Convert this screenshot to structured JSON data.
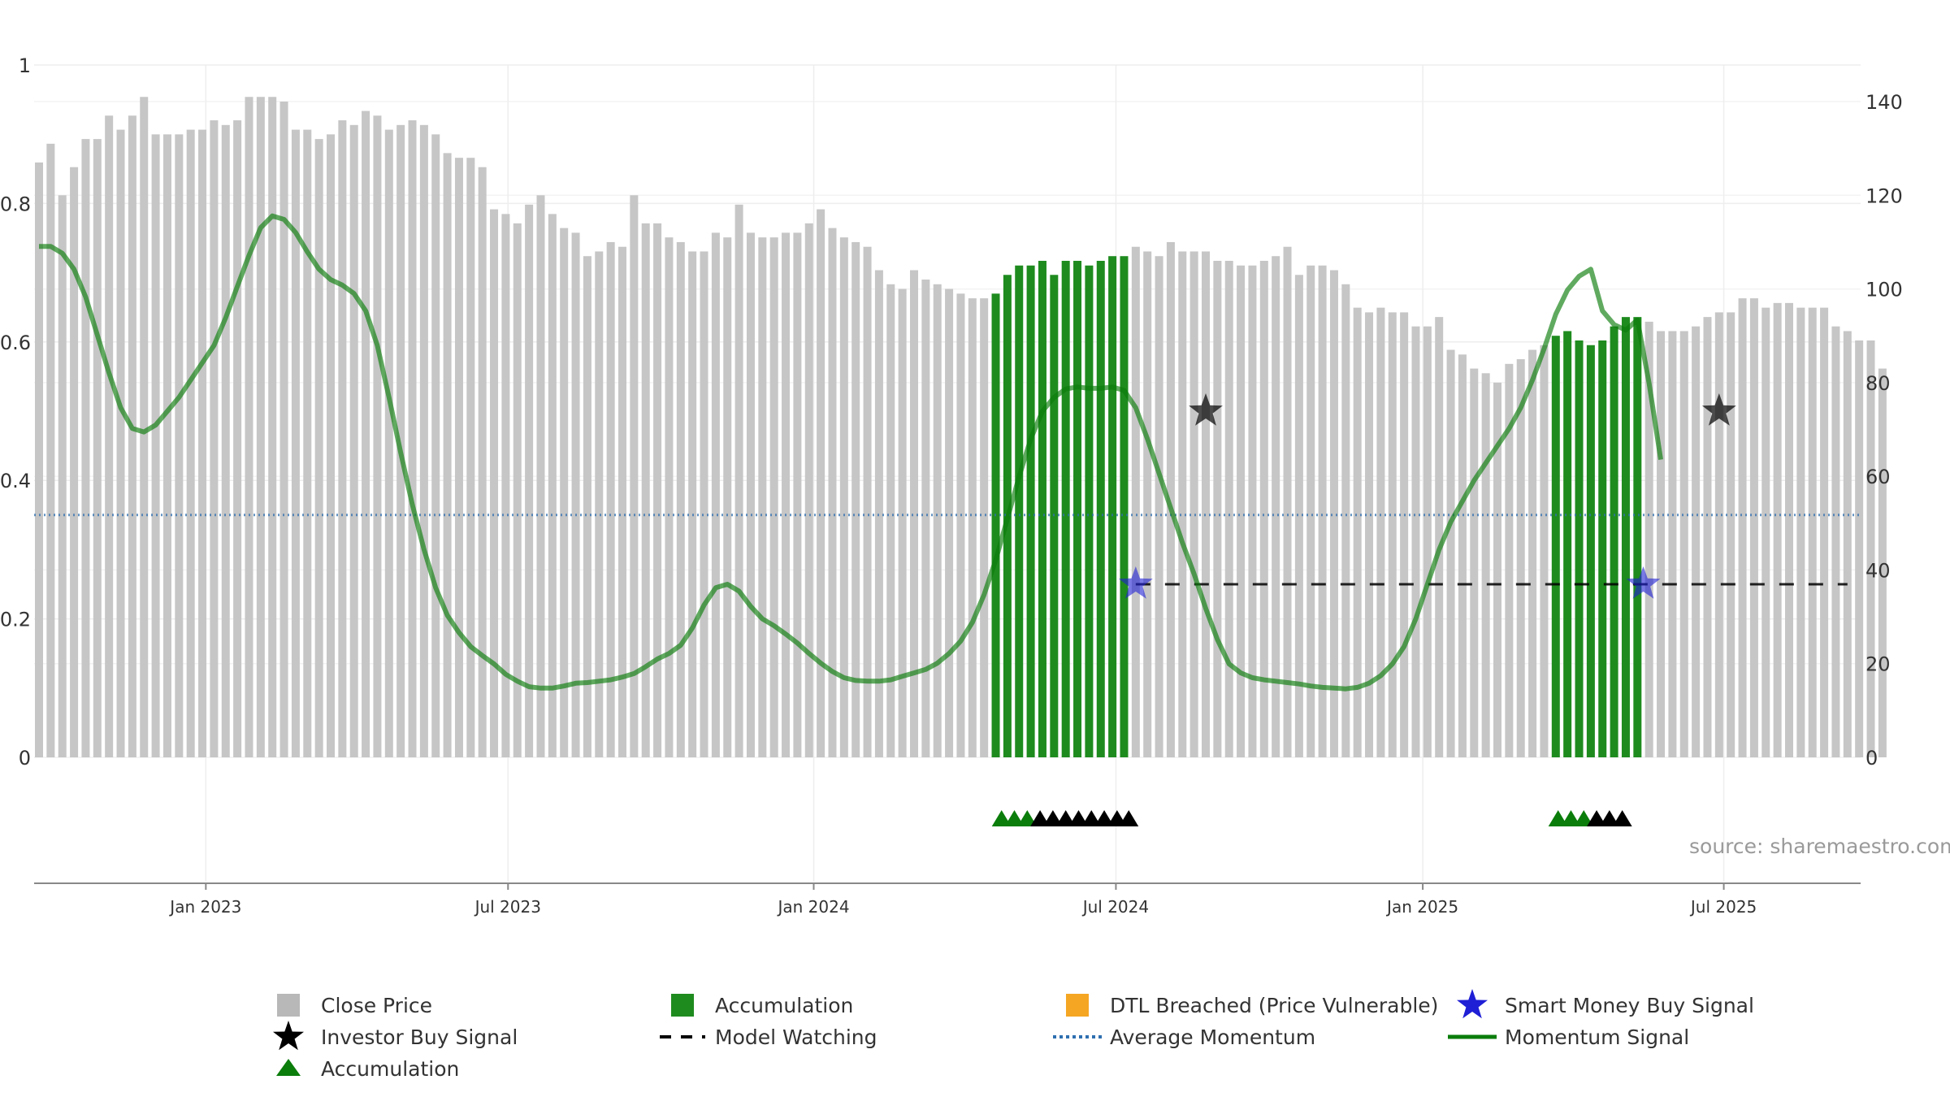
{
  "chart_data": {
    "type": "bar",
    "source": "source: sharemaestro.com",
    "x_ticks": [
      {
        "label": "Jan 2023",
        "idx": 14.3
      },
      {
        "label": "Jul 2023",
        "idx": 40.2
      },
      {
        "label": "Jan 2024",
        "idx": 66.4
      },
      {
        "label": "Jul 2024",
        "idx": 92.3
      },
      {
        "label": "Jan 2025",
        "idx": 118.6
      },
      {
        "label": "Jul 2025",
        "idx": 144.4
      }
    ],
    "y_left": {
      "ticks": [
        "0",
        "0.2",
        "0.4",
        "0.6",
        "0.8",
        "1"
      ],
      "range": [
        0,
        1
      ]
    },
    "y_right": {
      "ticks": [
        "0",
        "20",
        "40",
        "60",
        "80",
        "100",
        "120",
        "140"
      ],
      "range": [
        0,
        140
      ]
    },
    "close_price": [
      127,
      131,
      120,
      126,
      132,
      132,
      137,
      134,
      137,
      141,
      133,
      133,
      133,
      134,
      134,
      136,
      135,
      136,
      141,
      141,
      141,
      140,
      134,
      134,
      132,
      133,
      136,
      135,
      138,
      137,
      134,
      135,
      136,
      135,
      133,
      129,
      128,
      128,
      126,
      117,
      116,
      114,
      118,
      120,
      116,
      113,
      112,
      107,
      108,
      110,
      109,
      120,
      114,
      114,
      111,
      110,
      108,
      108,
      112,
      111,
      118,
      112,
      111,
      111,
      112,
      112,
      114,
      117,
      113,
      111,
      110,
      109,
      104,
      101,
      100,
      104,
      102,
      101,
      100,
      99,
      98,
      98,
      99,
      103,
      105,
      105,
      106,
      103,
      106,
      106,
      105,
      106,
      107,
      107,
      109,
      108,
      107,
      110,
      108,
      108,
      108,
      106,
      106,
      105,
      105,
      106,
      107,
      109,
      103,
      105,
      105,
      104,
      101,
      96,
      95,
      96,
      95,
      95,
      92,
      92,
      94,
      87,
      86,
      83,
      82,
      80,
      84,
      85,
      87,
      88,
      90,
      91,
      89,
      88,
      89,
      92,
      94,
      94,
      93,
      91,
      91,
      91,
      92,
      94,
      95,
      95,
      98,
      98,
      96,
      97,
      97,
      96,
      96,
      96,
      92,
      91,
      89,
      89,
      83
    ],
    "accumulation_bars": [
      [
        82,
        93
      ],
      [
        130,
        137
      ]
    ],
    "momentum": [
      0.738,
      0.738,
      0.728,
      0.705,
      0.665,
      0.61,
      0.555,
      0.505,
      0.475,
      0.47,
      0.48,
      0.5,
      0.52,
      0.545,
      0.57,
      0.595,
      0.635,
      0.68,
      0.725,
      0.765,
      0.782,
      0.777,
      0.758,
      0.73,
      0.705,
      0.69,
      0.682,
      0.67,
      0.645,
      0.595,
      0.52,
      0.44,
      0.365,
      0.3,
      0.245,
      0.205,
      0.18,
      0.16,
      0.147,
      0.135,
      0.12,
      0.11,
      0.102,
      0.1,
      0.1,
      0.103,
      0.107,
      0.108,
      0.11,
      0.112,
      0.116,
      0.121,
      0.131,
      0.142,
      0.15,
      0.162,
      0.187,
      0.22,
      0.245,
      0.25,
      0.24,
      0.218,
      0.2,
      0.19,
      0.178,
      0.165,
      0.15,
      0.136,
      0.124,
      0.115,
      0.111,
      0.11,
      0.11,
      0.112,
      0.117,
      0.122,
      0.127,
      0.136,
      0.15,
      0.168,
      0.195,
      0.235,
      0.285,
      0.345,
      0.405,
      0.46,
      0.5,
      0.52,
      0.532,
      0.535,
      0.533,
      0.533,
      0.535,
      0.53,
      0.505,
      0.46,
      0.41,
      0.36,
      0.31,
      0.265,
      0.215,
      0.17,
      0.135,
      0.122,
      0.115,
      0.112,
      0.11,
      0.108,
      0.106,
      0.103,
      0.101,
      0.1,
      0.099,
      0.101,
      0.107,
      0.118,
      0.135,
      0.16,
      0.2,
      0.25,
      0.3,
      0.34,
      0.37,
      0.4,
      0.425,
      0.45,
      0.475,
      0.505,
      0.545,
      0.59,
      0.64,
      0.675,
      0.695,
      0.705,
      0.645,
      0.625,
      0.617,
      0.632,
      0.54,
      0.43
    ],
    "momentum_transition_index": 140,
    "average_momentum": 0.35,
    "model_watching": {
      "from": 94,
      "to": 155,
      "level": 0.25
    },
    "investor_buy_signals": [
      {
        "idx": 100,
        "value": 0.5
      },
      {
        "idx": 144,
        "value": 0.5
      }
    ],
    "smart_money_buy_signals": [
      {
        "idx": 94,
        "value": 0.25
      },
      {
        "idx": 137.5,
        "value": 0.25
      }
    ],
    "triangles": [
      {
        "idx": 82.5,
        "color": "green"
      },
      {
        "idx": 83.6,
        "color": "green"
      },
      {
        "idx": 84.7,
        "color": "green"
      },
      {
        "idx": 85.8,
        "color": "black"
      },
      {
        "idx": 86.9,
        "color": "black"
      },
      {
        "idx": 88,
        "color": "black"
      },
      {
        "idx": 89.1,
        "color": "black"
      },
      {
        "idx": 90.2,
        "color": "black"
      },
      {
        "idx": 91.3,
        "color": "black"
      },
      {
        "idx": 92.4,
        "color": "black"
      },
      {
        "idx": 93.4,
        "color": "black"
      },
      {
        "idx": 130.2,
        "color": "green"
      },
      {
        "idx": 131.3,
        "color": "green"
      },
      {
        "idx": 132.4,
        "color": "green"
      },
      {
        "idx": 133.5,
        "color": "black"
      },
      {
        "idx": 134.6,
        "color": "black"
      },
      {
        "idx": 135.7,
        "color": "black"
      }
    ],
    "colors": {
      "close": "#c6c6c6",
      "accumulation": "#1e8b1e",
      "dtl": "#f5a623",
      "momentum": "#0b7d0b",
      "average": "#2e6fb0",
      "watching": "#000000",
      "smart_money": "#1f1fd6",
      "investor": "#000000"
    },
    "legend": [
      {
        "label": "Close Price",
        "symbol": "square",
        "color": "#b8b8b8"
      },
      {
        "label": "Accumulation",
        "symbol": "square",
        "color": "#1e8b1e"
      },
      {
        "label": "DTL Breached (Price Vulnerable)",
        "symbol": "square",
        "color": "#f5a623"
      },
      {
        "label": "Smart Money Buy Signal",
        "symbol": "star",
        "color": "#1f1fd6"
      },
      {
        "label": "Investor Buy Signal",
        "symbol": "star",
        "color": "#000000"
      },
      {
        "label": "Model Watching",
        "symbol": "dash",
        "color": "#000000"
      },
      {
        "label": "Average Momentum",
        "symbol": "dot",
        "color": "#2e6fb0"
      },
      {
        "label": "Momentum Signal",
        "symbol": "line",
        "color": "#0b7d0b"
      },
      {
        "label": "Accumulation",
        "symbol": "triangle",
        "color": "#0b7d0b"
      }
    ]
  }
}
